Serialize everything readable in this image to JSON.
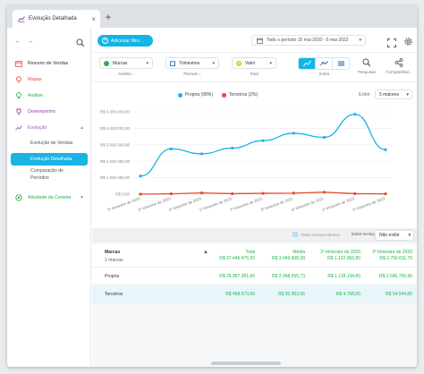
{
  "colors": {
    "accent": "#12b5e8",
    "propria": "#1ab3e6",
    "terceiros": "#e74c2b",
    "positive": "#25b24a",
    "text": "#333333"
  },
  "tab": {
    "title": "Evolução Detalhada",
    "close": "×",
    "new_tab": "+"
  },
  "nav": {
    "back": "←",
    "forward": "→"
  },
  "sidebar": {
    "items": [
      {
        "label": "Resumo de Vendas",
        "icon": "calendar-icon",
        "color": "#e74c3c"
      },
      {
        "label": "Mapas",
        "icon": "map-pin-icon",
        "color": "#e74c3c"
      },
      {
        "label": "Análise",
        "icon": "lightbulb-icon",
        "color": "#25b24a"
      },
      {
        "label": "Desempenho",
        "icon": "trophy-icon",
        "color": "#8e44ad"
      },
      {
        "label": "Evolução",
        "icon": "trend-icon",
        "color": "#9b59b6"
      },
      {
        "label": "Atividade da Carteira",
        "icon": "target-icon",
        "color": "#25b24a"
      }
    ],
    "sub": [
      {
        "label": "Evolução de Vendas"
      },
      {
        "label": "Evolução Detalhada"
      },
      {
        "label": "Comparação de"
      },
      {
        "label": "Períodos"
      }
    ]
  },
  "header": {
    "add_filter": "Adicionar filtro...",
    "date_range": "Todo o período   15 mai 2020 - 6 mai 2022"
  },
  "controls": {
    "dim1": {
      "label": "Marcas",
      "caption": "Análise ↓"
    },
    "dim2": {
      "label": "Trimestres",
      "caption": "Período ↓"
    },
    "dim3": {
      "label": "Valor",
      "caption": "Total"
    },
    "view_caption": "Exibir",
    "search": "Pesquisar",
    "share": "Compartilhar..."
  },
  "chart_data": {
    "type": "line",
    "legend": [
      {
        "name": "Propria",
        "pct": "(98%)"
      },
      {
        "name": "Terceiros",
        "pct": "(2%)"
      }
    ],
    "show_label": "Exibir",
    "show_value": "5 maiores",
    "yticks": [
      "R$ 5.000.000,00",
      "R$ 4.000.000,00",
      "R$ 3.000.000,00",
      "R$ 2.000.000,00",
      "R$ 1.000.000,00",
      "R$ 0,00"
    ],
    "ylim": [
      0,
      5000000
    ],
    "categories": [
      "2º trimestre de 2020",
      "3º trimestre de 2020",
      "4º trimestre de 2020",
      "1º trimestre de 2021",
      "2º trimestre de 2021",
      "3º trimestre de 2021",
      "4º trimestre de 2021",
      "1º trimestre de 2022",
      "2º trimestre de 2022"
    ],
    "series": [
      {
        "name": "Propria",
        "values": [
          1100000,
          2750000,
          2450000,
          2800000,
          3250000,
          3700000,
          3450000,
          4850000,
          2700000
        ]
      },
      {
        "name": "Terceiros",
        "values": [
          0,
          20000,
          75000,
          30000,
          50000,
          60000,
          120000,
          30000,
          20000
        ]
      }
    ]
  },
  "table": {
    "total_check": "Totais sempre abertos",
    "show_evolution": "Exibir evolução",
    "no_show": "Não exibir",
    "headers": {
      "col0": "Marcas",
      "col0_sub": "2 marcas",
      "total": "Total",
      "total_val": "R$ 27.446.475,50",
      "media": "Média",
      "media_val": "R$ 3.049.608,39",
      "q2": "2º trimestre de 2020",
      "q2_val": "R$ 1.122.962,80",
      "q3": "3º trimestre de 2020",
      "q3_val": "R$ 2.750.611,75"
    },
    "rows": [
      {
        "name": "Propria",
        "total": "R$ 26.987.901,60",
        "media": "R$ 2.998.655,73",
        "q2": "R$ 1.118.194,80",
        "q3": "R$ 2.696.766,90"
      },
      {
        "name": "Terceiros",
        "total": "R$ 458.573,90",
        "media": "R$ 50.952,66",
        "q2": "R$ 4.768,00",
        "q3": "R$ 54.044,85"
      }
    ]
  }
}
